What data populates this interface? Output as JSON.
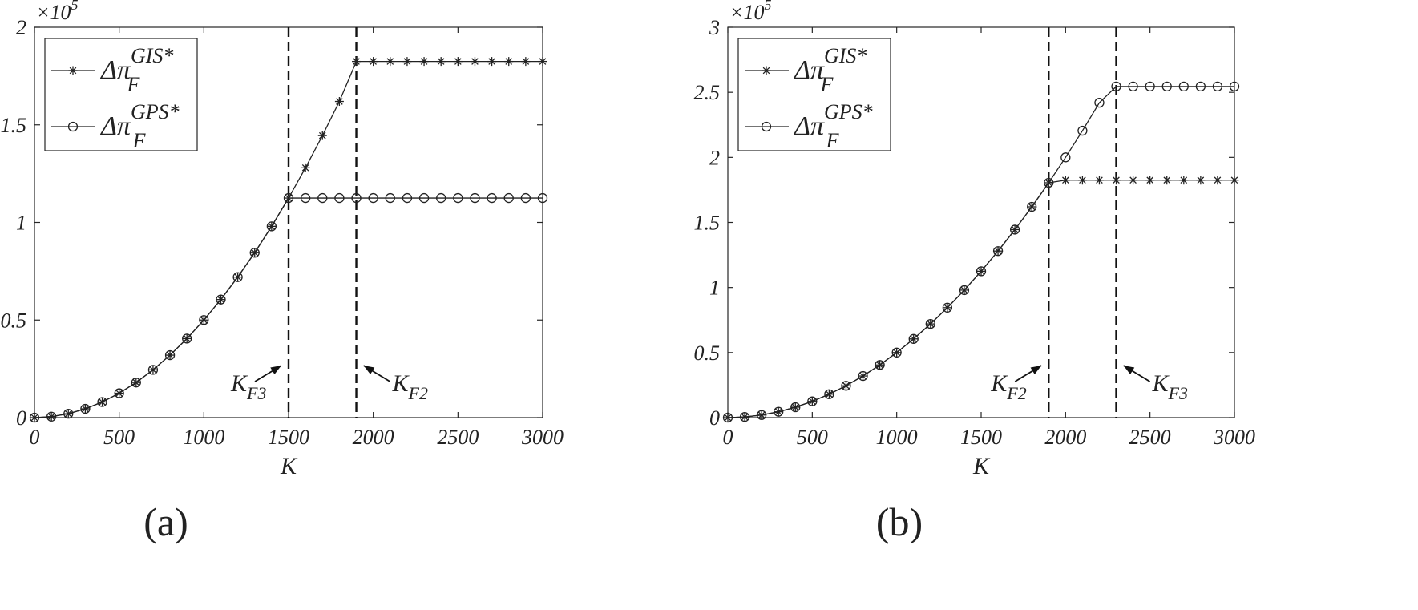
{
  "chart_data": [
    {
      "panel": "(a)",
      "type": "line",
      "xlabel": "K",
      "ylabel": "",
      "xlim": [
        0,
        3000
      ],
      "ylim": [
        0,
        2
      ],
      "y_scale_label": "×10^5",
      "xticks": [
        0,
        500,
        1000,
        1500,
        2000,
        2500,
        3000
      ],
      "xtick_labels": [
        "0",
        "500",
        "1000",
        "1500",
        "2000",
        "2500",
        "3000"
      ],
      "yticks": [
        0,
        0.5,
        1,
        1.5,
        2
      ],
      "ytick_labels": [
        "0",
        "0.5",
        "1",
        "1.5",
        "2"
      ],
      "legend_position": "top-left",
      "x": [
        0,
        100,
        200,
        300,
        400,
        500,
        600,
        700,
        800,
        900,
        1000,
        1100,
        1200,
        1300,
        1400,
        1500,
        1600,
        1700,
        1800,
        1900,
        2000,
        2100,
        2200,
        2300,
        2400,
        2500,
        2600,
        2700,
        2800,
        2900,
        3000
      ],
      "series": [
        {
          "legend_main": "Δπ",
          "legend_sub": "F",
          "legend_sup": "GIS*",
          "marker": "star",
          "values": [
            0,
            0.005,
            0.02,
            0.045,
            0.08,
            0.125,
            0.18,
            0.245,
            0.32,
            0.405,
            0.5,
            0.605,
            0.72,
            0.845,
            0.98,
            1.125,
            1.28,
            1.445,
            1.62,
            1.825,
            1.825,
            1.825,
            1.825,
            1.825,
            1.825,
            1.825,
            1.825,
            1.825,
            1.825,
            1.825,
            1.825
          ]
        },
        {
          "legend_main": "Δπ",
          "legend_sub": "F",
          "legend_sup": "GPS*",
          "marker": "circle",
          "values": [
            0,
            0.005,
            0.02,
            0.045,
            0.08,
            0.125,
            0.18,
            0.245,
            0.32,
            0.405,
            0.5,
            0.605,
            0.72,
            0.845,
            0.98,
            1.125,
            1.125,
            1.125,
            1.125,
            1.125,
            1.125,
            1.125,
            1.125,
            1.125,
            1.125,
            1.125,
            1.125,
            1.125,
            1.125,
            1.125,
            1.125
          ]
        }
      ],
      "vlines": [
        {
          "x": 1500,
          "label_main": "K",
          "label_sub": "F3",
          "label_side": "left"
        },
        {
          "x": 1900,
          "label_main": "K",
          "label_sub": "F2",
          "label_side": "right"
        }
      ]
    },
    {
      "panel": "(b)",
      "type": "line",
      "xlabel": "K",
      "ylabel": "",
      "xlim": [
        0,
        3000
      ],
      "ylim": [
        0,
        3
      ],
      "y_scale_label": "×10^5",
      "xticks": [
        0,
        500,
        1000,
        1500,
        2000,
        2500,
        3000
      ],
      "xtick_labels": [
        "0",
        "500",
        "1000",
        "1500",
        "2000",
        "2500",
        "3000"
      ],
      "yticks": [
        0,
        0.5,
        1,
        1.5,
        2,
        2.5,
        3
      ],
      "ytick_labels": [
        "0",
        "0.5",
        "1",
        "1.5",
        "2",
        "2.5",
        "3"
      ],
      "legend_position": "top-left",
      "x": [
        0,
        100,
        200,
        300,
        400,
        500,
        600,
        700,
        800,
        900,
        1000,
        1100,
        1200,
        1300,
        1400,
        1500,
        1600,
        1700,
        1800,
        1900,
        2000,
        2100,
        2200,
        2300,
        2400,
        2500,
        2600,
        2700,
        2800,
        2900,
        3000
      ],
      "series": [
        {
          "legend_main": "Δπ",
          "legend_sub": "F",
          "legend_sup": "GIS*",
          "marker": "star",
          "values": [
            0,
            0.005,
            0.02,
            0.045,
            0.08,
            0.125,
            0.18,
            0.245,
            0.32,
            0.405,
            0.5,
            0.605,
            0.72,
            0.845,
            0.98,
            1.125,
            1.28,
            1.445,
            1.62,
            1.805,
            1.825,
            1.825,
            1.825,
            1.825,
            1.825,
            1.825,
            1.825,
            1.825,
            1.825,
            1.825,
            1.825
          ]
        },
        {
          "legend_main": "Δπ",
          "legend_sub": "F",
          "legend_sup": "GPS*",
          "marker": "circle",
          "values": [
            0,
            0.005,
            0.02,
            0.045,
            0.08,
            0.125,
            0.18,
            0.245,
            0.32,
            0.405,
            0.5,
            0.605,
            0.72,
            0.845,
            0.98,
            1.125,
            1.28,
            1.445,
            1.62,
            1.805,
            2.0,
            2.205,
            2.42,
            2.545,
            2.545,
            2.545,
            2.545,
            2.545,
            2.545,
            2.545,
            2.545
          ]
        }
      ],
      "vlines": [
        {
          "x": 1900,
          "label_main": "K",
          "label_sub": "F2",
          "label_side": "left"
        },
        {
          "x": 2300,
          "label_main": "K",
          "label_sub": "F3",
          "label_side": "right"
        }
      ]
    }
  ]
}
